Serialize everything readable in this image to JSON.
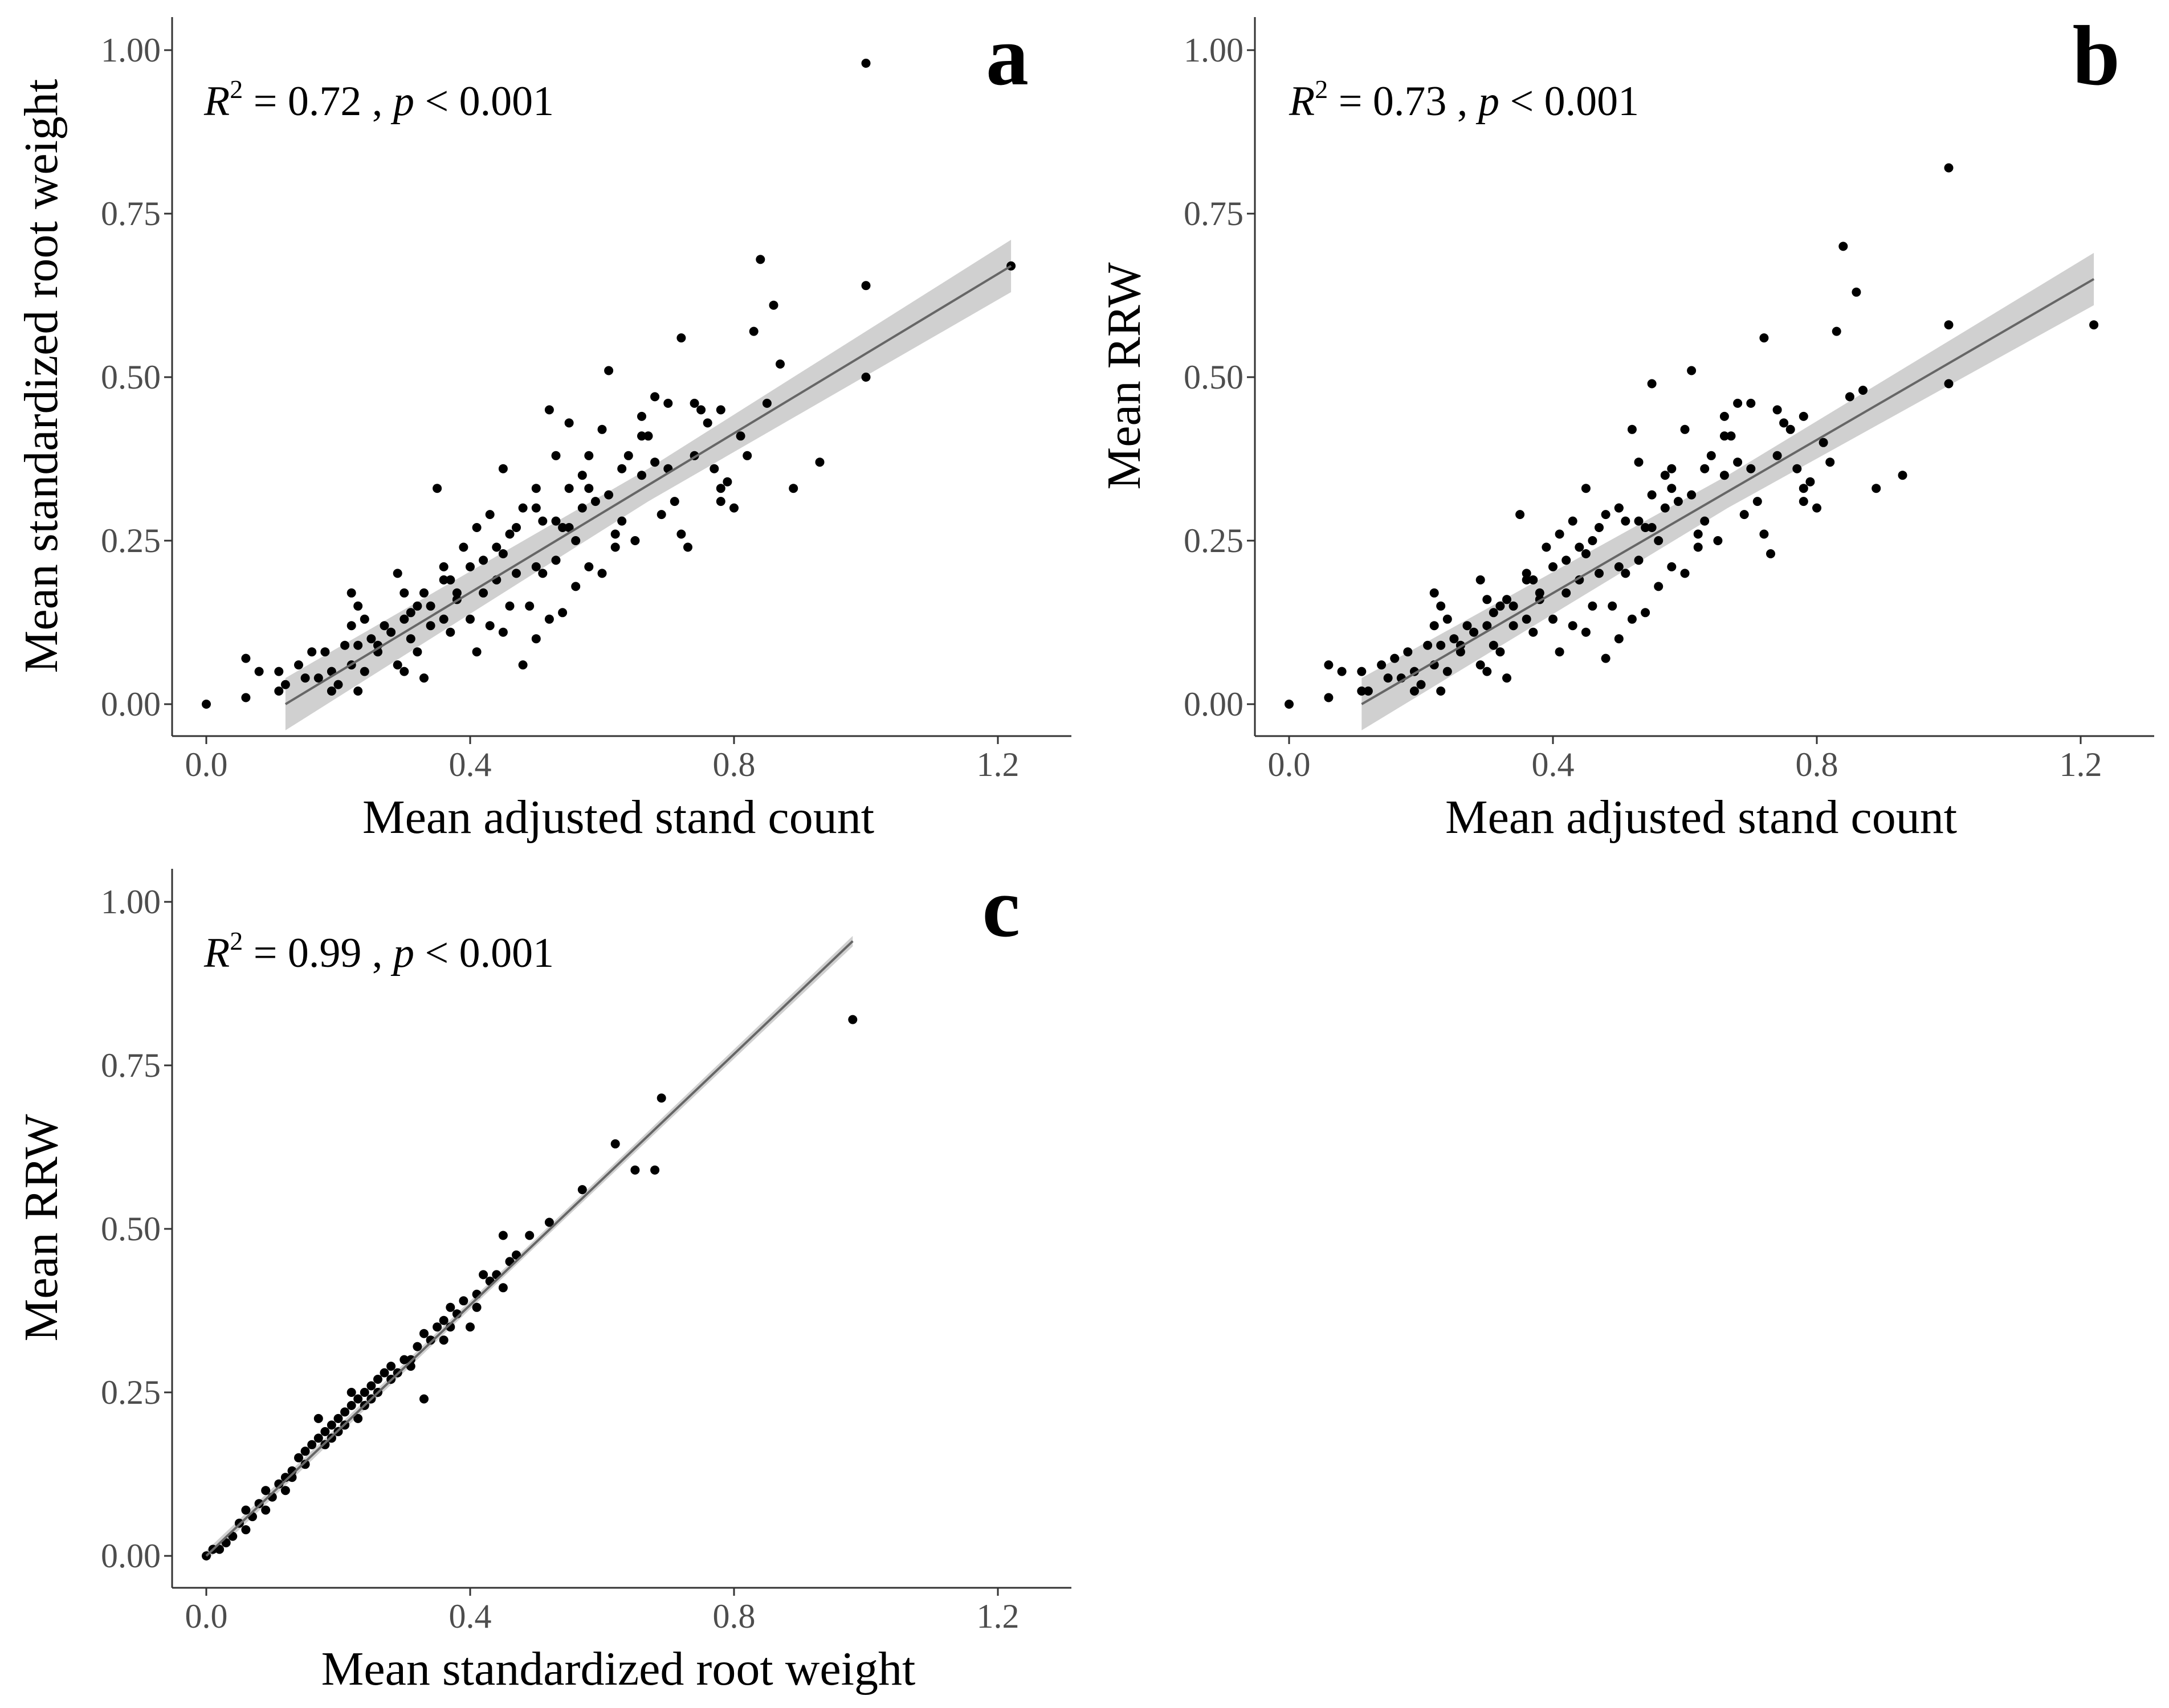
{
  "figure": {
    "background": "#ffffff",
    "point_color": "#000000",
    "line_color": "#666666",
    "ribbon_color": "#c8c8c8"
  },
  "chart_data": [
    {
      "panel": "a",
      "type": "scatter",
      "xlabel": "Mean adjusted stand count",
      "ylabel": "Mean standardized root weight",
      "xlim": [
        -0.04,
        1.28
      ],
      "ylim": [
        -0.05,
        1.05
      ],
      "xticks": [
        0.0,
        0.4,
        0.8,
        1.2
      ],
      "xtick_labels": [
        "0.0",
        "0.4",
        "0.8",
        "1.2"
      ],
      "yticks": [
        0.0,
        0.25,
        0.5,
        0.75,
        1.0
      ],
      "ytick_labels": [
        "0.00",
        "0.25",
        "0.50",
        "0.75",
        "1.00"
      ],
      "annotation": {
        "r_symbol": "R",
        "r_exp": "2",
        "r_text": " = 0.72 , ",
        "p_symbol": "p",
        "p_text": " < 0.001"
      },
      "fit": {
        "x": [
          0.12,
          1.22
        ],
        "y": [
          0.0,
          0.67
        ],
        "ribbon_halfwidth": [
          0.025,
          0.04
        ]
      },
      "x": [
        0.0,
        0.06,
        0.06,
        0.11,
        0.11,
        0.12,
        0.14,
        0.16,
        0.17,
        0.18,
        0.19,
        0.19,
        0.2,
        0.21,
        0.22,
        0.22,
        0.22,
        0.23,
        0.23,
        0.23,
        0.24,
        0.24,
        0.25,
        0.26,
        0.27,
        0.28,
        0.29,
        0.29,
        0.3,
        0.3,
        0.3,
        0.31,
        0.31,
        0.32,
        0.33,
        0.33,
        0.34,
        0.34,
        0.35,
        0.36,
        0.36,
        0.37,
        0.37,
        0.38,
        0.39,
        0.4,
        0.4,
        0.41,
        0.41,
        0.42,
        0.42,
        0.43,
        0.43,
        0.44,
        0.45,
        0.45,
        0.45,
        0.46,
        0.47,
        0.48,
        0.48,
        0.49,
        0.5,
        0.5,
        0.5,
        0.51,
        0.51,
        0.52,
        0.52,
        0.53,
        0.53,
        0.54,
        0.55,
        0.55,
        0.55,
        0.56,
        0.56,
        0.57,
        0.58,
        0.58,
        0.59,
        0.6,
        0.6,
        0.61,
        0.61,
        0.62,
        0.63,
        0.63,
        0.64,
        0.65,
        0.66,
        0.66,
        0.67,
        0.68,
        0.69,
        0.7,
        0.71,
        0.72,
        0.72,
        0.73,
        0.74,
        0.75,
        0.76,
        0.77,
        0.78,
        0.78,
        0.79,
        0.8,
        0.81,
        0.82,
        0.83,
        0.84,
        0.85,
        0.86,
        0.87,
        0.89,
        0.93,
        1.0,
        1.0,
        1.0,
        1.22,
        0.08,
        0.15,
        0.26,
        0.32,
        0.38,
        0.44,
        0.47,
        0.53,
        0.57,
        0.62,
        0.68,
        0.74,
        0.78,
        0.36,
        0.46,
        0.5,
        0.54,
        0.58,
        0.66,
        0.7
      ],
      "y": [
        0.0,
        0.01,
        0.07,
        0.02,
        0.05,
        0.03,
        0.06,
        0.08,
        0.04,
        0.08,
        0.02,
        0.05,
        0.03,
        0.09,
        0.06,
        0.12,
        0.17,
        0.02,
        0.09,
        0.15,
        0.05,
        0.13,
        0.1,
        0.08,
        0.12,
        0.11,
        0.06,
        0.2,
        0.05,
        0.13,
        0.17,
        0.1,
        0.14,
        0.08,
        0.04,
        0.17,
        0.12,
        0.15,
        0.33,
        0.13,
        0.21,
        0.11,
        0.19,
        0.16,
        0.24,
        0.13,
        0.21,
        0.08,
        0.27,
        0.17,
        0.22,
        0.29,
        0.12,
        0.19,
        0.11,
        0.23,
        0.36,
        0.26,
        0.2,
        0.06,
        0.3,
        0.15,
        0.1,
        0.21,
        0.33,
        0.2,
        0.28,
        0.13,
        0.45,
        0.22,
        0.38,
        0.14,
        0.27,
        0.33,
        0.43,
        0.18,
        0.25,
        0.3,
        0.21,
        0.38,
        0.31,
        0.2,
        0.42,
        0.32,
        0.51,
        0.26,
        0.28,
        0.36,
        0.38,
        0.25,
        0.35,
        0.44,
        0.41,
        0.37,
        0.29,
        0.36,
        0.31,
        0.26,
        0.56,
        0.24,
        0.38,
        0.45,
        0.43,
        0.36,
        0.31,
        0.45,
        0.34,
        0.3,
        0.41,
        0.38,
        0.57,
        0.68,
        0.46,
        0.61,
        0.52,
        0.33,
        0.37,
        0.5,
        0.64,
        0.98,
        0.67,
        0.05,
        0.04,
        0.09,
        0.15,
        0.17,
        0.24,
        0.27,
        0.28,
        0.35,
        0.24,
        0.47,
        0.46,
        0.33,
        0.19,
        0.15,
        0.3,
        0.27,
        0.33,
        0.41,
        0.46
      ]
    },
    {
      "panel": "b",
      "type": "scatter",
      "xlabel": "Mean adjusted stand count",
      "ylabel": "Mean RRW",
      "xlim": [
        -0.04,
        1.28
      ],
      "ylim": [
        -0.05,
        1.05
      ],
      "xticks": [
        0.0,
        0.4,
        0.8,
        1.2
      ],
      "xtick_labels": [
        "0.0",
        "0.4",
        "0.8",
        "1.2"
      ],
      "yticks": [
        0.0,
        0.25,
        0.5,
        0.75,
        1.0
      ],
      "ytick_labels": [
        "0.00",
        "0.25",
        "0.50",
        "0.75",
        "1.00"
      ],
      "annotation": {
        "r_symbol": "R",
        "r_exp": "2",
        "r_text": " = 0.73 , ",
        "p_symbol": "p",
        "p_text": " < 0.001"
      },
      "fit": {
        "x": [
          0.11,
          1.22
        ],
        "y": [
          0.0,
          0.65
        ],
        "ribbon_halfwidth": [
          0.025,
          0.04
        ]
      },
      "x": [
        0.0,
        0.06,
        0.06,
        0.11,
        0.11,
        0.12,
        0.14,
        0.16,
        0.17,
        0.18,
        0.19,
        0.19,
        0.2,
        0.21,
        0.22,
        0.22,
        0.22,
        0.23,
        0.23,
        0.23,
        0.24,
        0.24,
        0.25,
        0.26,
        0.27,
        0.28,
        0.29,
        0.29,
        0.3,
        0.3,
        0.3,
        0.31,
        0.31,
        0.32,
        0.33,
        0.33,
        0.34,
        0.34,
        0.35,
        0.36,
        0.36,
        0.37,
        0.37,
        0.38,
        0.39,
        0.4,
        0.4,
        0.41,
        0.41,
        0.42,
        0.42,
        0.43,
        0.43,
        0.44,
        0.45,
        0.45,
        0.45,
        0.46,
        0.47,
        0.48,
        0.48,
        0.49,
        0.5,
        0.5,
        0.5,
        0.51,
        0.51,
        0.52,
        0.52,
        0.53,
        0.53,
        0.54,
        0.55,
        0.55,
        0.55,
        0.56,
        0.56,
        0.57,
        0.58,
        0.58,
        0.59,
        0.6,
        0.6,
        0.61,
        0.61,
        0.62,
        0.63,
        0.63,
        0.64,
        0.65,
        0.66,
        0.66,
        0.67,
        0.68,
        0.69,
        0.7,
        0.71,
        0.72,
        0.72,
        0.73,
        0.74,
        0.75,
        0.76,
        0.77,
        0.78,
        0.78,
        0.79,
        0.8,
        0.81,
        0.82,
        0.83,
        0.84,
        0.85,
        0.86,
        0.87,
        0.89,
        0.93,
        1.0,
        1.0,
        1.0,
        1.22,
        0.08,
        0.15,
        0.26,
        0.32,
        0.38,
        0.44,
        0.47,
        0.53,
        0.57,
        0.62,
        0.68,
        0.74,
        0.78,
        0.36,
        0.46,
        0.5,
        0.54,
        0.58,
        0.66,
        0.7
      ],
      "y": [
        0.0,
        0.01,
        0.06,
        0.02,
        0.05,
        0.02,
        0.06,
        0.07,
        0.04,
        0.08,
        0.02,
        0.05,
        0.03,
        0.09,
        0.06,
        0.12,
        0.17,
        0.02,
        0.09,
        0.15,
        0.05,
        0.13,
        0.1,
        0.08,
        0.12,
        0.11,
        0.06,
        0.19,
        0.05,
        0.12,
        0.16,
        0.09,
        0.14,
        0.08,
        0.04,
        0.16,
        0.12,
        0.15,
        0.29,
        0.13,
        0.2,
        0.11,
        0.19,
        0.16,
        0.24,
        0.13,
        0.21,
        0.08,
        0.26,
        0.17,
        0.22,
        0.28,
        0.12,
        0.19,
        0.11,
        0.23,
        0.33,
        0.25,
        0.2,
        0.07,
        0.29,
        0.15,
        0.1,
        0.21,
        0.3,
        0.2,
        0.28,
        0.13,
        0.42,
        0.22,
        0.37,
        0.14,
        0.27,
        0.32,
        0.49,
        0.18,
        0.25,
        0.3,
        0.21,
        0.36,
        0.31,
        0.2,
        0.42,
        0.32,
        0.51,
        0.26,
        0.28,
        0.36,
        0.38,
        0.25,
        0.35,
        0.44,
        0.41,
        0.37,
        0.29,
        0.36,
        0.31,
        0.26,
        0.56,
        0.23,
        0.38,
        0.43,
        0.42,
        0.36,
        0.31,
        0.44,
        0.34,
        0.3,
        0.4,
        0.37,
        0.57,
        0.7,
        0.47,
        0.63,
        0.48,
        0.33,
        0.35,
        0.49,
        0.58,
        0.82,
        0.58,
        0.05,
        0.04,
        0.09,
        0.15,
        0.17,
        0.24,
        0.27,
        0.28,
        0.35,
        0.24,
        0.46,
        0.45,
        0.33,
        0.19,
        0.15,
        0.3,
        0.27,
        0.33,
        0.41,
        0.46
      ]
    },
    {
      "panel": "c",
      "type": "scatter",
      "xlabel": "Mean standardized root weight",
      "ylabel": "Mean RRW",
      "xlim": [
        -0.04,
        1.28
      ],
      "ylim": [
        -0.05,
        1.05
      ],
      "xticks": [
        0.0,
        0.4,
        0.8,
        1.2
      ],
      "xtick_labels": [
        "0.0",
        "0.4",
        "0.8",
        "1.2"
      ],
      "yticks": [
        0.0,
        0.25,
        0.5,
        0.75,
        1.0
      ],
      "ytick_labels": [
        "0.00",
        "0.25",
        "0.50",
        "0.75",
        "1.00"
      ],
      "annotation": {
        "r_symbol": "R",
        "r_exp": "2",
        "r_text": " = 0.99 , ",
        "p_symbol": "p",
        "p_text": " < 0.001"
      },
      "fit": {
        "x": [
          0.0,
          0.98
        ],
        "y": [
          0.0,
          0.94
        ],
        "ribbon_halfwidth": [
          0.006,
          0.008
        ]
      },
      "x": [
        0.0,
        0.02,
        0.04,
        0.05,
        0.06,
        0.07,
        0.08,
        0.09,
        0.1,
        0.11,
        0.12,
        0.12,
        0.13,
        0.14,
        0.15,
        0.15,
        0.16,
        0.17,
        0.17,
        0.18,
        0.18,
        0.19,
        0.2,
        0.2,
        0.21,
        0.21,
        0.22,
        0.22,
        0.23,
        0.23,
        0.24,
        0.24,
        0.25,
        0.25,
        0.26,
        0.27,
        0.28,
        0.28,
        0.29,
        0.3,
        0.31,
        0.32,
        0.33,
        0.33,
        0.34,
        0.35,
        0.36,
        0.37,
        0.37,
        0.38,
        0.39,
        0.4,
        0.41,
        0.42,
        0.43,
        0.45,
        0.45,
        0.46,
        0.47,
        0.49,
        0.52,
        0.57,
        0.62,
        0.65,
        0.68,
        0.69,
        0.98,
        0.01,
        0.03,
        0.06,
        0.09,
        0.13,
        0.19,
        0.26,
        0.31,
        0.36,
        0.41,
        0.44
      ],
      "y": [
        0.0,
        0.01,
        0.03,
        0.05,
        0.07,
        0.06,
        0.08,
        0.1,
        0.09,
        0.11,
        0.1,
        0.12,
        0.13,
        0.15,
        0.14,
        0.16,
        0.17,
        0.18,
        0.21,
        0.17,
        0.19,
        0.2,
        0.19,
        0.21,
        0.22,
        0.2,
        0.23,
        0.25,
        0.21,
        0.24,
        0.23,
        0.25,
        0.26,
        0.24,
        0.27,
        0.28,
        0.27,
        0.29,
        0.28,
        0.3,
        0.3,
        0.32,
        0.24,
        0.34,
        0.33,
        0.35,
        0.36,
        0.35,
        0.38,
        0.37,
        0.39,
        0.35,
        0.38,
        0.43,
        0.42,
        0.41,
        0.49,
        0.45,
        0.46,
        0.49,
        0.51,
        0.56,
        0.63,
        0.59,
        0.59,
        0.7,
        0.82,
        0.01,
        0.02,
        0.04,
        0.07,
        0.12,
        0.18,
        0.25,
        0.29,
        0.33,
        0.4,
        0.43
      ]
    }
  ]
}
